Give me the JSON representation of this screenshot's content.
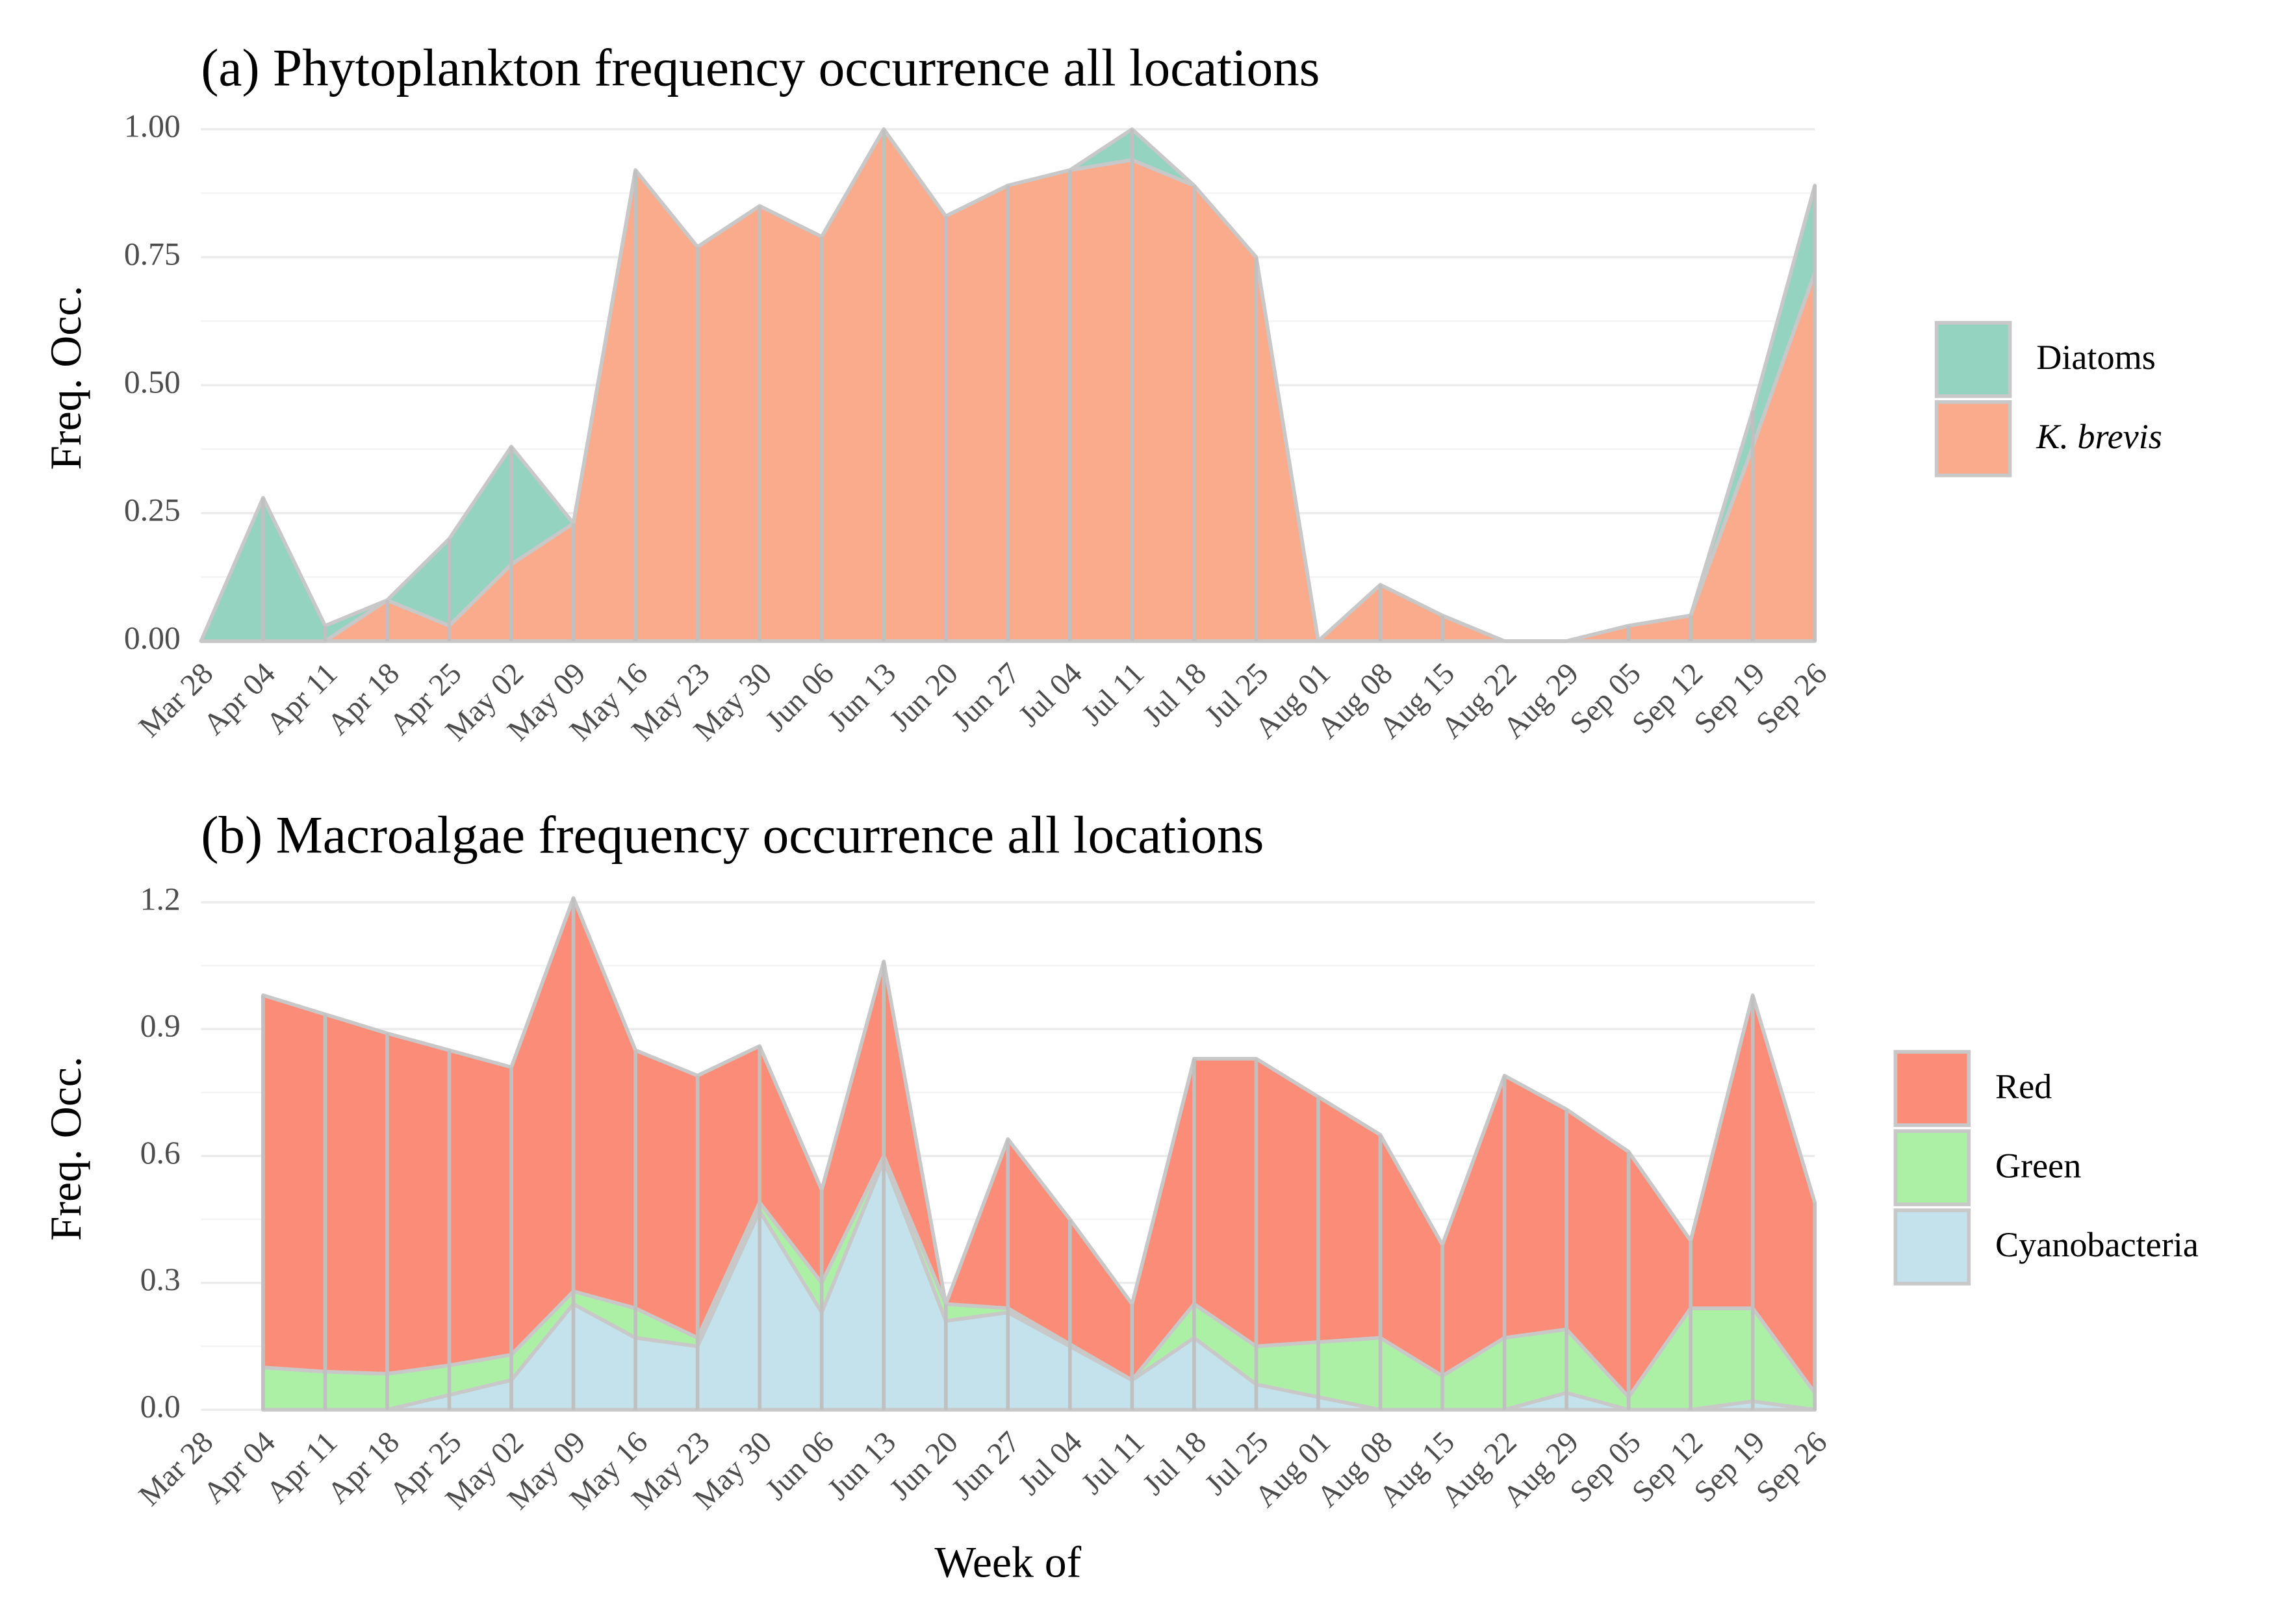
{
  "chart_data": [
    {
      "type": "stacked_area",
      "title": "(a) Phytoplankton frequency occurrence all locations",
      "y_label": "Freq. Occ.",
      "categories": [
        "Mar 28",
        "Apr 04",
        "Apr 11",
        "Apr 18",
        "Apr 25",
        "May 02",
        "May 09",
        "May 16",
        "May 23",
        "May 30",
        "Jun 06",
        "Jun 13",
        "Jun 20",
        "Jun 27",
        "Jul 04",
        "Jul 11",
        "Jul 18",
        "Jul 25",
        "Aug 01",
        "Aug 08",
        "Aug 15",
        "Aug 22",
        "Aug 29",
        "Sep 05",
        "Sep 12",
        "Sep 19",
        "Sep 26"
      ],
      "series": [
        {
          "name": "Diatoms",
          "color": "#93d3bf",
          "values": [
            0,
            0.28,
            0.03,
            0,
            0.17,
            0.23,
            0,
            0,
            0,
            0,
            0,
            0,
            0,
            0,
            0,
            0.06,
            0,
            0,
            0,
            0,
            0,
            0,
            0,
            0,
            0,
            0.07,
            0.17
          ]
        },
        {
          "name": "K. brevis",
          "color": "#f9ab8b",
          "italic": true,
          "values": [
            0,
            0,
            0,
            0.08,
            0.03,
            0.15,
            0.23,
            0.92,
            0.77,
            0.85,
            0.79,
            1.0,
            0.83,
            0.89,
            0.92,
            0.94,
            0.89,
            0.75,
            0,
            0.11,
            0.05,
            0,
            0,
            0.03,
            0.05,
            0.38,
            0.72
          ]
        }
      ],
      "ylim": [
        0,
        1
      ],
      "yticks": [
        {
          "value": 0,
          "label": "0.00"
        },
        0.25,
        {
          "value": 0.5,
          "label": "0.50"
        },
        0.75,
        {
          "value": 1,
          "label": "1.00"
        }
      ],
      "grid": true,
      "legend": "right"
    },
    {
      "type": "stacked_area",
      "title": "(b) Macroalgae frequency occurrence all locations",
      "y_label": "Freq. Occ.",
      "x_label": "Week of",
      "categories": [
        "Mar 28",
        "Apr 04",
        "Apr 11",
        "Apr 18",
        "Apr 25",
        "May 02",
        "May 09",
        "May 16",
        "May 23",
        "May 30",
        "Jun 06",
        "Jun 13",
        "Jun 20",
        "Jun 27",
        "Jul 04",
        "Jul 11",
        "Jul 18",
        "Jul 25",
        "Aug 01",
        "Aug 08",
        "Aug 15",
        "Aug 22",
        "Aug 29",
        "Sep 05",
        "Sep 12",
        "Sep 19",
        "Sep 26"
      ],
      "series": [
        {
          "name": "Red",
          "color": "#fb8d78",
          "values": [
            null,
            0.88,
            0.845,
            0.805,
            0.745,
            0.68,
            0.93,
            0.61,
            0.62,
            0.37,
            0.22,
            0.46,
            0,
            0.4,
            0.295,
            0.18,
            0.58,
            0.68,
            0.58,
            0.48,
            0.31,
            0.62,
            0.52,
            0.58,
            0.16,
            0.74,
            0.45
          ]
        },
        {
          "name": "Green",
          "color": "#acf0a6",
          "values": [
            null,
            0.1,
            0.09,
            0.085,
            0.07,
            0.06,
            0.03,
            0.07,
            0.02,
            0.02,
            0.07,
            0.01,
            0.04,
            0.01,
            0.005,
            0,
            0.08,
            0.09,
            0.13,
            0.17,
            0.08,
            0.17,
            0.15,
            0.03,
            0.24,
            0.22,
            0.04
          ]
        },
        {
          "name": "Cyanobacteria",
          "color": "#c4e2ec",
          "values": [
            null,
            0,
            0,
            0,
            0.035,
            0.07,
            0.25,
            0.17,
            0.15,
            0.47,
            0.23,
            0.59,
            0.21,
            0.23,
            0.15,
            0.07,
            0.17,
            0.06,
            0.03,
            0,
            0,
            0,
            0.04,
            0,
            0,
            0.02,
            0
          ]
        }
      ],
      "ylim": [
        0,
        1.2
      ],
      "yticks": [
        {
          "value": 0,
          "label": "0.0"
        },
        0.3,
        0.6,
        0.9,
        1.2
      ],
      "grid": true,
      "legend": "right"
    }
  ]
}
